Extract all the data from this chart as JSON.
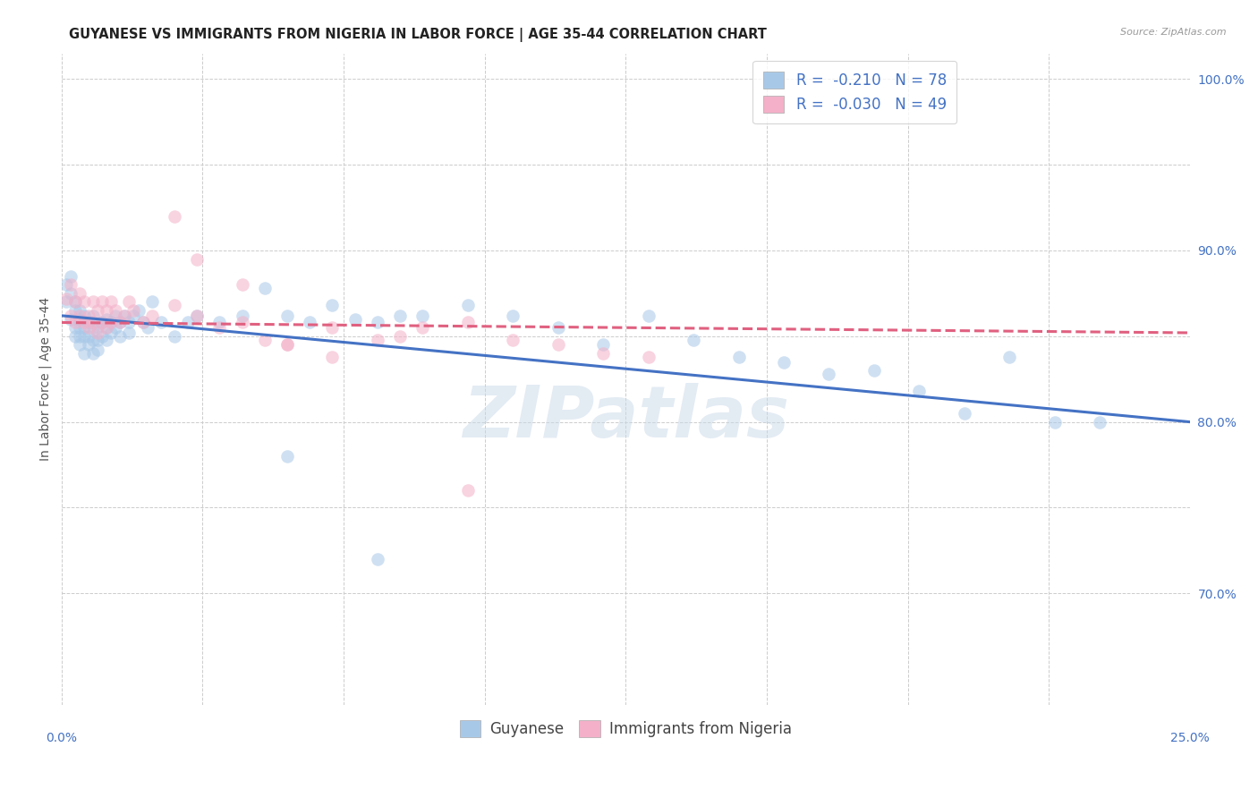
{
  "title": "GUYANESE VS IMMIGRANTS FROM NIGERIA IN LABOR FORCE | AGE 35-44 CORRELATION CHART",
  "source": "Source: ZipAtlas.com",
  "ylabel": "In Labor Force | Age 35-44",
  "series1_name": "Guyanese",
  "series2_name": "Immigrants from Nigeria",
  "series1_color": "#a8c8e8",
  "series2_color": "#f4b0c8",
  "series1_line_color": "#4472c4",
  "series2_line_color": "#e06080",
  "watermark": "ZIPatlas",
  "xlim": [
    0.0,
    0.25
  ],
  "ylim": [
    0.635,
    1.015
  ],
  "y_ticks": [
    0.7,
    0.8,
    0.9,
    1.0
  ],
  "y_tick_labels": [
    "70.0%",
    "80.0%",
    "90.0%",
    "100.0%"
  ],
  "grid_y_ticks": [
    0.7,
    0.75,
    0.8,
    0.85,
    0.9,
    0.95,
    1.0
  ],
  "background_color": "#ffffff",
  "legend_R1": "R = ",
  "legend_R1_val": "-0.210",
  "legend_N1": "N = ",
  "legend_N1_val": "78",
  "legend_R2": "R = ",
  "legend_R2_val": "-0.030",
  "legend_N2": "N = ",
  "legend_N2_val": "49",
  "trend1_x0": 0.0,
  "trend1_y0": 0.862,
  "trend1_x1": 0.25,
  "trend1_y1": 0.8,
  "trend2_x0": 0.0,
  "trend2_y0": 0.858,
  "trend2_x1": 0.25,
  "trend2_y1": 0.852,
  "guyanese_x": [
    0.001,
    0.001,
    0.002,
    0.002,
    0.002,
    0.003,
    0.003,
    0.003,
    0.003,
    0.004,
    0.004,
    0.004,
    0.004,
    0.004,
    0.005,
    0.005,
    0.005,
    0.005,
    0.006,
    0.006,
    0.006,
    0.007,
    0.007,
    0.007,
    0.007,
    0.008,
    0.008,
    0.008,
    0.009,
    0.009,
    0.01,
    0.01,
    0.01,
    0.011,
    0.011,
    0.012,
    0.012,
    0.013,
    0.013,
    0.014,
    0.015,
    0.015,
    0.016,
    0.017,
    0.018,
    0.019,
    0.02,
    0.022,
    0.025,
    0.028,
    0.03,
    0.035,
    0.04,
    0.045,
    0.05,
    0.055,
    0.06,
    0.065,
    0.07,
    0.075,
    0.08,
    0.09,
    0.1,
    0.11,
    0.12,
    0.13,
    0.14,
    0.15,
    0.16,
    0.17,
    0.18,
    0.19,
    0.2,
    0.21,
    0.22,
    0.23,
    0.05,
    0.07
  ],
  "guyanese_y": [
    0.88,
    0.87,
    0.875,
    0.885,
    0.86,
    0.865,
    0.87,
    0.855,
    0.85,
    0.86,
    0.865,
    0.855,
    0.85,
    0.845,
    0.855,
    0.862,
    0.85,
    0.84,
    0.858,
    0.85,
    0.845,
    0.862,
    0.855,
    0.848,
    0.84,
    0.855,
    0.848,
    0.842,
    0.858,
    0.85,
    0.86,
    0.855,
    0.848,
    0.858,
    0.852,
    0.862,
    0.855,
    0.858,
    0.85,
    0.862,
    0.858,
    0.852,
    0.862,
    0.865,
    0.858,
    0.855,
    0.87,
    0.858,
    0.85,
    0.858,
    0.862,
    0.858,
    0.862,
    0.878,
    0.862,
    0.858,
    0.868,
    0.86,
    0.858,
    0.862,
    0.862,
    0.868,
    0.862,
    0.855,
    0.845,
    0.862,
    0.848,
    0.838,
    0.835,
    0.828,
    0.83,
    0.818,
    0.805,
    0.838,
    0.8,
    0.8,
    0.78,
    0.72
  ],
  "nigeria_x": [
    0.001,
    0.002,
    0.002,
    0.003,
    0.003,
    0.004,
    0.004,
    0.005,
    0.005,
    0.006,
    0.006,
    0.007,
    0.007,
    0.008,
    0.008,
    0.009,
    0.009,
    0.01,
    0.01,
    0.011,
    0.011,
    0.012,
    0.013,
    0.014,
    0.015,
    0.016,
    0.018,
    0.02,
    0.025,
    0.03,
    0.035,
    0.04,
    0.045,
    0.05,
    0.06,
    0.07,
    0.08,
    0.09,
    0.1,
    0.11,
    0.12,
    0.13,
    0.025,
    0.03,
    0.04,
    0.05,
    0.06,
    0.075,
    0.09
  ],
  "nigeria_y": [
    0.872,
    0.88,
    0.862,
    0.87,
    0.858,
    0.875,
    0.862,
    0.87,
    0.858,
    0.862,
    0.855,
    0.87,
    0.858,
    0.865,
    0.852,
    0.87,
    0.858,
    0.865,
    0.855,
    0.87,
    0.858,
    0.865,
    0.858,
    0.862,
    0.87,
    0.865,
    0.858,
    0.862,
    0.868,
    0.862,
    0.855,
    0.858,
    0.848,
    0.845,
    0.855,
    0.848,
    0.855,
    0.858,
    0.848,
    0.845,
    0.84,
    0.838,
    0.92,
    0.895,
    0.88,
    0.845,
    0.838,
    0.85,
    0.76
  ],
  "marker_size": 110,
  "marker_alpha": 0.55,
  "title_fontsize": 10.5,
  "tick_fontsize": 9,
  "ylabel_fontsize": 10
}
